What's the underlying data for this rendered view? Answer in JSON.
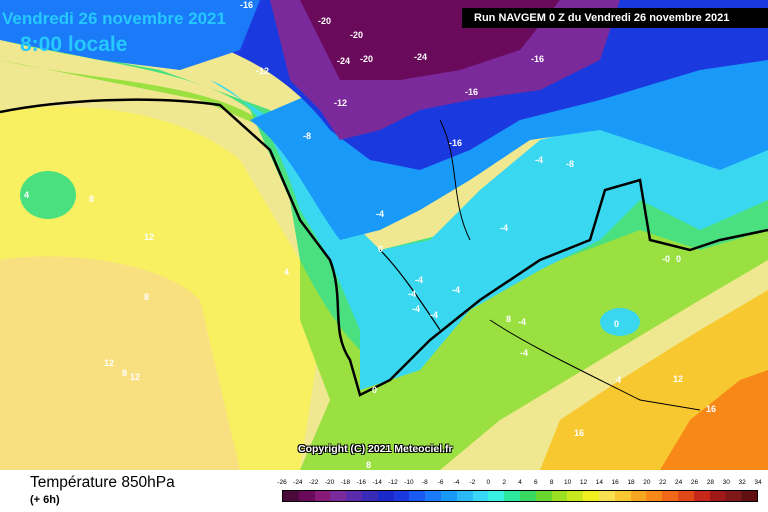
{
  "header": {
    "date_title": "Vendredi 26 novembre 2021",
    "time_title": "8:00 locale",
    "run_banner": "Run NAVGEM 0 Z du Vendredi 26 novembre 2021"
  },
  "map": {
    "copyright": "Copyright (C) 2021 Meteociel.fr",
    "isotherm_labels": [
      "-16",
      "-20",
      "-20",
      "-24",
      "-20",
      "-24",
      "-12",
      "-16",
      "-16",
      "-12",
      "-8",
      "-16",
      "-4",
      "-8",
      "-4",
      "-4",
      "0",
      "-4",
      "-4",
      "-4",
      "-4",
      "-4",
      "-4",
      "0",
      "-0",
      "8",
      "-4",
      "4",
      "0",
      "0",
      "8",
      "12",
      "16",
      "16",
      "4",
      "8",
      "12",
      "4",
      "8",
      "12",
      "12",
      "8"
    ]
  },
  "footer": {
    "parameter_title": "Température 850hPa",
    "forecast_step": "(+ 6h)"
  },
  "legend": {
    "labels": [
      "-26",
      "-24",
      "-22",
      "-20",
      "-18",
      "-16",
      "-14",
      "-12",
      "-10",
      "-8",
      "-6",
      "-4",
      "-2",
      "0",
      "2",
      "4",
      "6",
      "8",
      "10",
      "12",
      "14",
      "16",
      "18",
      "20",
      "22",
      "24",
      "26",
      "28",
      "30",
      "32",
      "34"
    ],
    "colors": [
      "#4a0a3c",
      "#6a0a5a",
      "#8a1a7a",
      "#7a2a9a",
      "#5a2aaa",
      "#3a2ab8",
      "#1a2ac8",
      "#1a3ae0",
      "#1a5af0",
      "#1a7af8",
      "#1a9af8",
      "#2abaf8",
      "#3ad8f8",
      "#3af0e0",
      "#2ae8a0",
      "#3ad860",
      "#6ad830",
      "#9ae020",
      "#c8e820",
      "#f0f020",
      "#f8e050",
      "#f8c830",
      "#f8a820",
      "#f88818",
      "#f06818",
      "#e04818",
      "#c82818",
      "#a01818",
      "#801818",
      "#601010"
    ]
  }
}
